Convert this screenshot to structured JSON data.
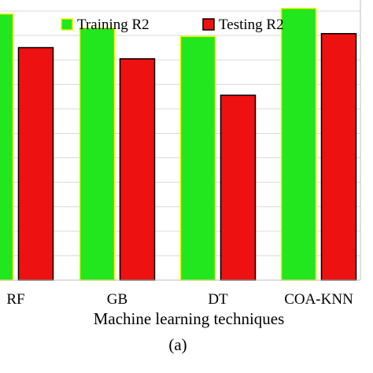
{
  "chart_data": {
    "type": "bar",
    "title": "",
    "xlabel": "Machine learning techniques",
    "ylabel": "",
    "caption": "(a)",
    "categories": [
      "RF",
      "GB",
      "DT",
      "COA-KNN"
    ],
    "series": [
      {
        "name": "Training R2",
        "values": [
          0.95,
          0.9,
          0.87,
          0.97
        ]
      },
      {
        "name": "Testing R2",
        "values": [
          0.83,
          0.79,
          0.66,
          0.88
        ]
      }
    ],
    "ylim": [
      0,
      1.0
    ],
    "grid": true,
    "legend_position": "top",
    "colors": {
      "training_fill": "#22e61e",
      "training_edge": "#f2f200",
      "testing_fill": "#ee1111",
      "testing_edge": "#000000",
      "grid": "#d9d9d9"
    }
  }
}
